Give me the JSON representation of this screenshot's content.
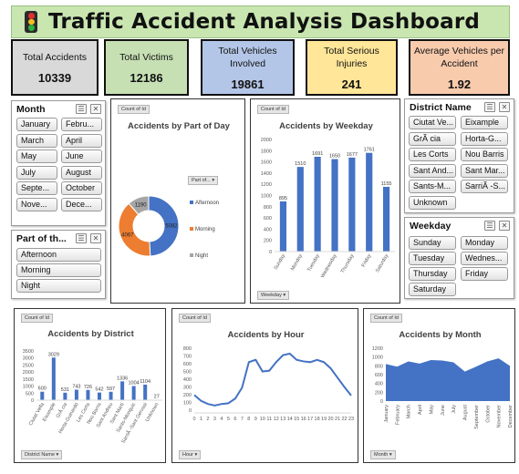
{
  "title": "Traffic Accident Analysis Dashboard",
  "kpis": [
    {
      "label": "Total Accidents",
      "value": "10339",
      "color": "#d9d9d9"
    },
    {
      "label": "Total Victims",
      "value": "12186",
      "color": "#c6e0b4"
    },
    {
      "label": "Total Vehicles Involved",
      "value": "19861",
      "color": "#b4c6e7"
    },
    {
      "label": "Total Serious Injuries",
      "value": "241",
      "color": "#ffe699"
    },
    {
      "label": "Average Vehicles per Accident",
      "value": "1.92",
      "color": "#f8cbad"
    }
  ],
  "slicers": {
    "month": {
      "title": "Month",
      "items": [
        "January",
        "Febru...",
        "March",
        "April",
        "May",
        "June",
        "July",
        "August",
        "Septe...",
        "October",
        "Nove...",
        "Dece..."
      ]
    },
    "part_of_day": {
      "title": "Part of th...",
      "items": [
        "Afternoon",
        "Morning",
        "Night"
      ]
    },
    "district": {
      "title": "District Name",
      "items": [
        "Ciutat Ve...",
        "Eixample",
        "GrÃ cia",
        "Horta-G...",
        "Les Corts",
        "Nou Barris",
        "Sant And...",
        "Sant Mar...",
        "Sants-M...",
        "SarriÃ -S...",
        "Unknown"
      ]
    },
    "weekday": {
      "title": "Weekday",
      "items": [
        "Sunday",
        "Monday",
        "Tuesday",
        "Wednes...",
        "Thursday",
        "Friday",
        "Saturday"
      ]
    }
  },
  "pivot_tag": "Count of Id",
  "charts": {
    "part_of_day": {
      "title": "Accidents by Part of Day",
      "field_button": "Part of..."
    },
    "weekday": {
      "title": "Accidents by Weekday",
      "field_button": "Weekday"
    },
    "district": {
      "title": "Accidents by District",
      "field_button": "District Name"
    },
    "hour": {
      "title": "Accidents by Hour",
      "field_button": "Hour"
    },
    "month": {
      "title": "Accidents by Month",
      "field_button": "Month"
    }
  },
  "chart_data": [
    {
      "type": "pie",
      "title": "Accidents by Part of Day",
      "categories": [
        "Afternoon",
        "Morning",
        "Night"
      ],
      "values": [
        5082,
        4067,
        1190
      ],
      "colors": [
        "#4472c4",
        "#ed7d31",
        "#a5a5a5"
      ],
      "legend": "right"
    },
    {
      "type": "bar",
      "title": "Accidents by Weekday",
      "categories": [
        "Sunday",
        "Monday",
        "Tuesday",
        "Wednesday",
        "Thursday",
        "Friday",
        "Saturday"
      ],
      "values": [
        895,
        1510,
        1691,
        1650,
        1677,
        1761,
        1155
      ],
      "ylim": [
        0,
        2000
      ],
      "yticks": [
        0,
        200,
        400,
        600,
        800,
        1000,
        1200,
        1400,
        1600,
        1800,
        2000
      ],
      "color": "#4472c4"
    },
    {
      "type": "bar",
      "title": "Accidents by District",
      "categories": [
        "Ciutat Vella",
        "Eixample",
        "GrÃ cia",
        "Horta-Guinardó",
        "Les Corts",
        "Nou Barris",
        "Sant Andreu",
        "Sant Martí",
        "Sants-Montjuïc",
        "SarriÃ -Sant Gervasi",
        "Unknown"
      ],
      "values": [
        600,
        3029,
        531,
        743,
        726,
        542,
        597,
        1336,
        1004,
        1104,
        27
      ],
      "ylim": [
        0,
        3500
      ],
      "yticks": [
        0,
        500,
        1000,
        1500,
        2000,
        2500,
        3000,
        3500
      ],
      "color": "#4472c4"
    },
    {
      "type": "line",
      "title": "Accidents by Hour",
      "x": [
        "0",
        "1",
        "2",
        "3",
        "4",
        "5",
        "6",
        "7",
        "8",
        "9",
        "10",
        "11",
        "12",
        "13",
        "14",
        "15",
        "16",
        "17",
        "18",
        "19",
        "20",
        "21",
        "22",
        "23"
      ],
      "values": [
        195,
        120,
        80,
        60,
        80,
        90,
        150,
        290,
        620,
        650,
        500,
        510,
        620,
        710,
        730,
        650,
        630,
        620,
        650,
        620,
        540,
        420,
        300,
        190
      ],
      "ylim": [
        0,
        800
      ],
      "yticks": [
        0,
        100,
        200,
        300,
        400,
        500,
        600,
        700,
        800
      ],
      "color": "#4472c4"
    },
    {
      "type": "area",
      "title": "Accidents by Month",
      "x": [
        "January",
        "February",
        "March",
        "April",
        "May",
        "June",
        "July",
        "August",
        "September",
        "October",
        "November",
        "December"
      ],
      "values": [
        840,
        780,
        900,
        850,
        930,
        920,
        880,
        670,
        780,
        900,
        970,
        800
      ],
      "ylim": [
        0,
        1200
      ],
      "yticks": [
        0,
        200,
        400,
        600,
        800,
        1000,
        1200
      ],
      "color": "#4472c4"
    }
  ]
}
